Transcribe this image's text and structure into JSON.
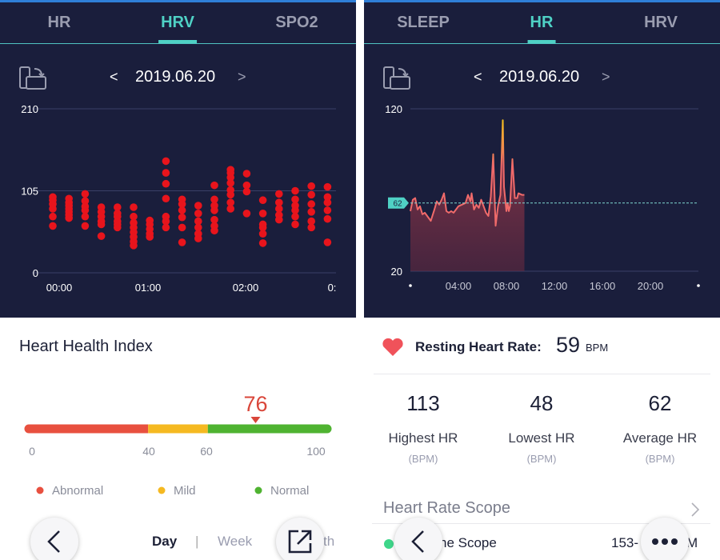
{
  "left": {
    "tabs": [
      {
        "label": "HR"
      },
      {
        "label": "HRV",
        "active": true
      },
      {
        "label": "SPO2"
      }
    ],
    "date": "2019.06.20",
    "prev": "<",
    "next": ">",
    "chart_data": {
      "type": "scatter",
      "y_ticks": [
        "210",
        "105",
        "0"
      ],
      "ylim": [
        0,
        210
      ],
      "x_ticks": [
        "00:00",
        "01:00",
        "02:00",
        "0:"
      ],
      "grid": true,
      "color": "#e8141c",
      "columns": [
        {
          "x": "00:00",
          "values": [
            97,
            93,
            88,
            82,
            72,
            60
          ]
        },
        {
          "x": "00:10",
          "values": [
            95,
            90,
            86,
            82,
            78,
            74,
            70
          ]
        },
        {
          "x": "00:20",
          "values": [
            101,
            92,
            85,
            80,
            72,
            60
          ]
        },
        {
          "x": "00:30",
          "values": [
            84,
            78,
            72,
            66,
            62,
            47
          ]
        },
        {
          "x": "00:40",
          "values": [
            84,
            76,
            72,
            66,
            62,
            58
          ]
        },
        {
          "x": "00:50",
          "values": [
            84,
            72,
            64,
            58,
            52,
            46,
            40,
            35
          ]
        },
        {
          "x": "01:00",
          "values": [
            67,
            62,
            56,
            50,
            46
          ]
        },
        {
          "x": "01:10",
          "values": [
            143,
            128,
            114,
            95,
            72,
            66,
            58
          ]
        },
        {
          "x": "01:20",
          "values": [
            94,
            88,
            80,
            71,
            58,
            39
          ]
        },
        {
          "x": "01:30",
          "values": [
            86,
            76,
            66,
            58,
            50,
            44
          ]
        },
        {
          "x": "01:40",
          "values": [
            112,
            94,
            86,
            80,
            68,
            60,
            54
          ]
        },
        {
          "x": "01:50",
          "values": [
            132,
            128,
            122,
            115,
            106,
            100,
            90,
            82
          ]
        },
        {
          "x": "02:00",
          "values": [
            127,
            112,
            104,
            76
          ]
        },
        {
          "x": "02:10",
          "values": [
            93,
            76,
            62,
            58,
            50,
            38
          ]
        },
        {
          "x": "02:20",
          "values": [
            101,
            90,
            82,
            74,
            68
          ]
        },
        {
          "x": "02:30",
          "values": [
            105,
            94,
            86,
            80,
            72,
            62
          ]
        },
        {
          "x": "02:40",
          "values": [
            111,
            100,
            88,
            78,
            66,
            58
          ]
        },
        {
          "x": "02:50",
          "values": [
            110,
            97,
            90,
            80,
            69,
            39
          ]
        }
      ]
    },
    "index": {
      "title": "Heart Health Index",
      "value": 76,
      "scale": [
        "0",
        "40",
        "60",
        "100"
      ],
      "segments": [
        {
          "from": 0,
          "to": 40,
          "color": "#e8503f"
        },
        {
          "from": 40,
          "to": 60,
          "color": "#f5b921"
        },
        {
          "from": 60,
          "to": 100,
          "color": "#4fb331"
        }
      ],
      "legend": [
        {
          "label": "Abnormal",
          "color": "#e8503f"
        },
        {
          "label": "Mild",
          "color": "#f5b921"
        },
        {
          "label": "Normal",
          "color": "#4fb331"
        }
      ]
    },
    "periods": {
      "day": "Day",
      "sep": "|",
      "week": "Week",
      "month": "th"
    }
  },
  "right": {
    "tabs": [
      {
        "label": "SLEEP"
      },
      {
        "label": "HR",
        "active": true
      },
      {
        "label": "HRV"
      }
    ],
    "date": "2019.06.20",
    "prev": "<",
    "next": ">",
    "chart_data": {
      "type": "area",
      "y_ticks": [
        "120",
        "20"
      ],
      "ylim": [
        20,
        120
      ],
      "x_ticks": [
        "04:00",
        "08:00",
        "12:00",
        "16:00",
        "20:00"
      ],
      "xlim_hours": [
        0,
        24
      ],
      "reference": {
        "label": "62",
        "value": 62
      },
      "color": "#f06a6a",
      "peak_color": "#f5c518",
      "points": [
        [
          0,
          57
        ],
        [
          0.2,
          64
        ],
        [
          0.4,
          65
        ],
        [
          0.6,
          58
        ],
        [
          0.8,
          60
        ],
        [
          1.0,
          55
        ],
        [
          1.2,
          56
        ],
        [
          1.5,
          53
        ],
        [
          1.7,
          51
        ],
        [
          2.0,
          58
        ],
        [
          2.2,
          63
        ],
        [
          2.4,
          61
        ],
        [
          2.6,
          64
        ],
        [
          2.8,
          68
        ],
        [
          3.0,
          57
        ],
        [
          3.2,
          56
        ],
        [
          3.4,
          57
        ],
        [
          3.6,
          56
        ],
        [
          3.8,
          58
        ],
        [
          4.0,
          60
        ],
        [
          4.3,
          61
        ],
        [
          4.6,
          62
        ],
        [
          4.8,
          67
        ],
        [
          5.0,
          63
        ],
        [
          5.1,
          68
        ],
        [
          5.3,
          58
        ],
        [
          5.5,
          61
        ],
        [
          5.7,
          59
        ],
        [
          5.9,
          64
        ],
        [
          6.1,
          60
        ],
        [
          6.3,
          56
        ],
        [
          6.5,
          54
        ],
        [
          6.7,
          66
        ],
        [
          6.9,
          92
        ],
        [
          7.0,
          70
        ],
        [
          7.1,
          48
        ],
        [
          7.3,
          60
        ],
        [
          7.5,
          67
        ],
        [
          7.7,
          113
        ],
        [
          7.8,
          72
        ],
        [
          8.0,
          57
        ],
        [
          8.1,
          62
        ],
        [
          8.2,
          57
        ],
        [
          8.3,
          60
        ],
        [
          8.5,
          89
        ],
        [
          8.7,
          65
        ],
        [
          8.9,
          65
        ],
        [
          9.0,
          68
        ],
        [
          9.3,
          67
        ],
        [
          9.5,
          67
        ]
      ]
    },
    "resting": {
      "label": "Resting Heart Rate:",
      "value": "59",
      "unit": "BPM"
    },
    "stats": [
      {
        "value": "113",
        "label": "Highest HR",
        "unit": "(BPM)"
      },
      {
        "value": "48",
        "label": "Lowest HR",
        "unit": "(BPM)"
      },
      {
        "value": "62",
        "label": "Average HR",
        "unit": "(BPM)"
      }
    ],
    "scope": {
      "title": "Heart Rate Scope",
      "row_label": "ne Scope",
      "row_value_a": "153-",
      "row_value_b": "M",
      "dot_color": "#3ed68a"
    }
  }
}
